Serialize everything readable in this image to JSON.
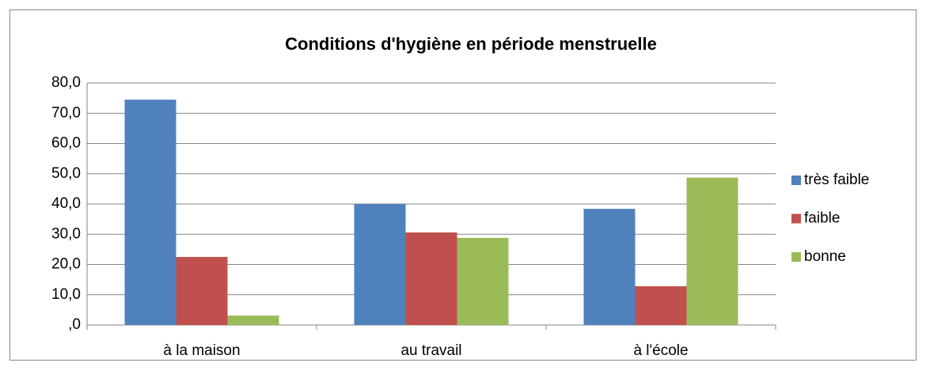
{
  "chart_data": {
    "type": "bar",
    "title": "Conditions d'hygiène en période menstruelle",
    "categories": [
      "à la maison",
      "au travail",
      "à l'école"
    ],
    "series": [
      {
        "name": "très faible",
        "color": "#4f81bd",
        "values": [
          74.5,
          40.0,
          38.4
        ]
      },
      {
        "name": "faible",
        "color": "#c0504d",
        "values": [
          22.5,
          30.6,
          12.8
        ]
      },
      {
        "name": "bonne",
        "color": "#9bbb59",
        "values": [
          3.1,
          28.8,
          48.7
        ]
      }
    ],
    "ylim": [
      0,
      80
    ],
    "yticks": [
      {
        "value": 0,
        "label": ",0"
      },
      {
        "value": 10,
        "label": "10,0"
      },
      {
        "value": 20,
        "label": "20,0"
      },
      {
        "value": 30,
        "label": "30,0"
      },
      {
        "value": 40,
        "label": "40,0"
      },
      {
        "value": 50,
        "label": "50,0"
      },
      {
        "value": 60,
        "label": "60,0"
      },
      {
        "value": 70,
        "label": "70,0"
      },
      {
        "value": 80,
        "label": "80,0"
      }
    ],
    "grid": true,
    "legend": "right"
  }
}
